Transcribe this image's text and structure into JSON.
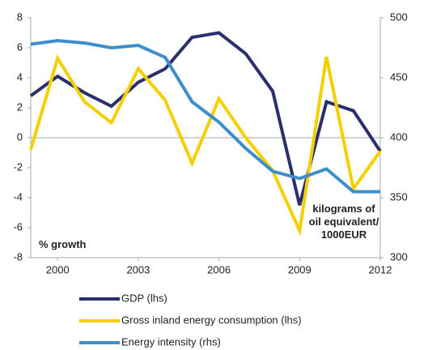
{
  "chart_data": {
    "type": "line",
    "x": [
      1999,
      2000,
      2001,
      2002,
      2003,
      2004,
      2005,
      2006,
      2007,
      2008,
      2009,
      2010,
      2011,
      2012
    ],
    "xlim": [
      1999,
      2012
    ],
    "xticks": [
      2000,
      2003,
      2006,
      2009,
      2012
    ],
    "ylim": [
      -8,
      8
    ],
    "yticks": [
      -8,
      -6,
      -4,
      -2,
      0,
      2,
      4,
      6,
      8
    ],
    "y2lim": [
      300,
      500
    ],
    "y2ticks": [
      300,
      350,
      400,
      450,
      500
    ],
    "annotations": [
      "% growth",
      "kilograms of oil equivalent/ 1000EUR"
    ],
    "series": [
      {
        "name": "GDP (lhs)",
        "color": "#2b2f6b",
        "values": [
          2.8,
          4.1,
          3.0,
          2.1,
          3.7,
          4.6,
          6.7,
          7.0,
          5.6,
          3.1,
          -4.5,
          2.4,
          1.8,
          -0.9
        ]
      },
      {
        "name": "Gross inland energy consumption (lhs)",
        "color": "#f5d000",
        "values": [
          -0.8,
          5.3,
          2.4,
          1.0,
          4.6,
          2.5,
          -1.7,
          2.6,
          0.0,
          -2.2,
          -6.2,
          5.4,
          -3.4,
          -0.9
        ]
      },
      {
        "name": "Energy intensity (rhs)",
        "color": "#3d8fcb",
        "axis": "y2",
        "values": [
          478,
          481,
          479,
          475,
          477,
          467,
          430,
          413,
          391,
          372,
          366,
          374,
          355,
          355
        ]
      }
    ]
  }
}
